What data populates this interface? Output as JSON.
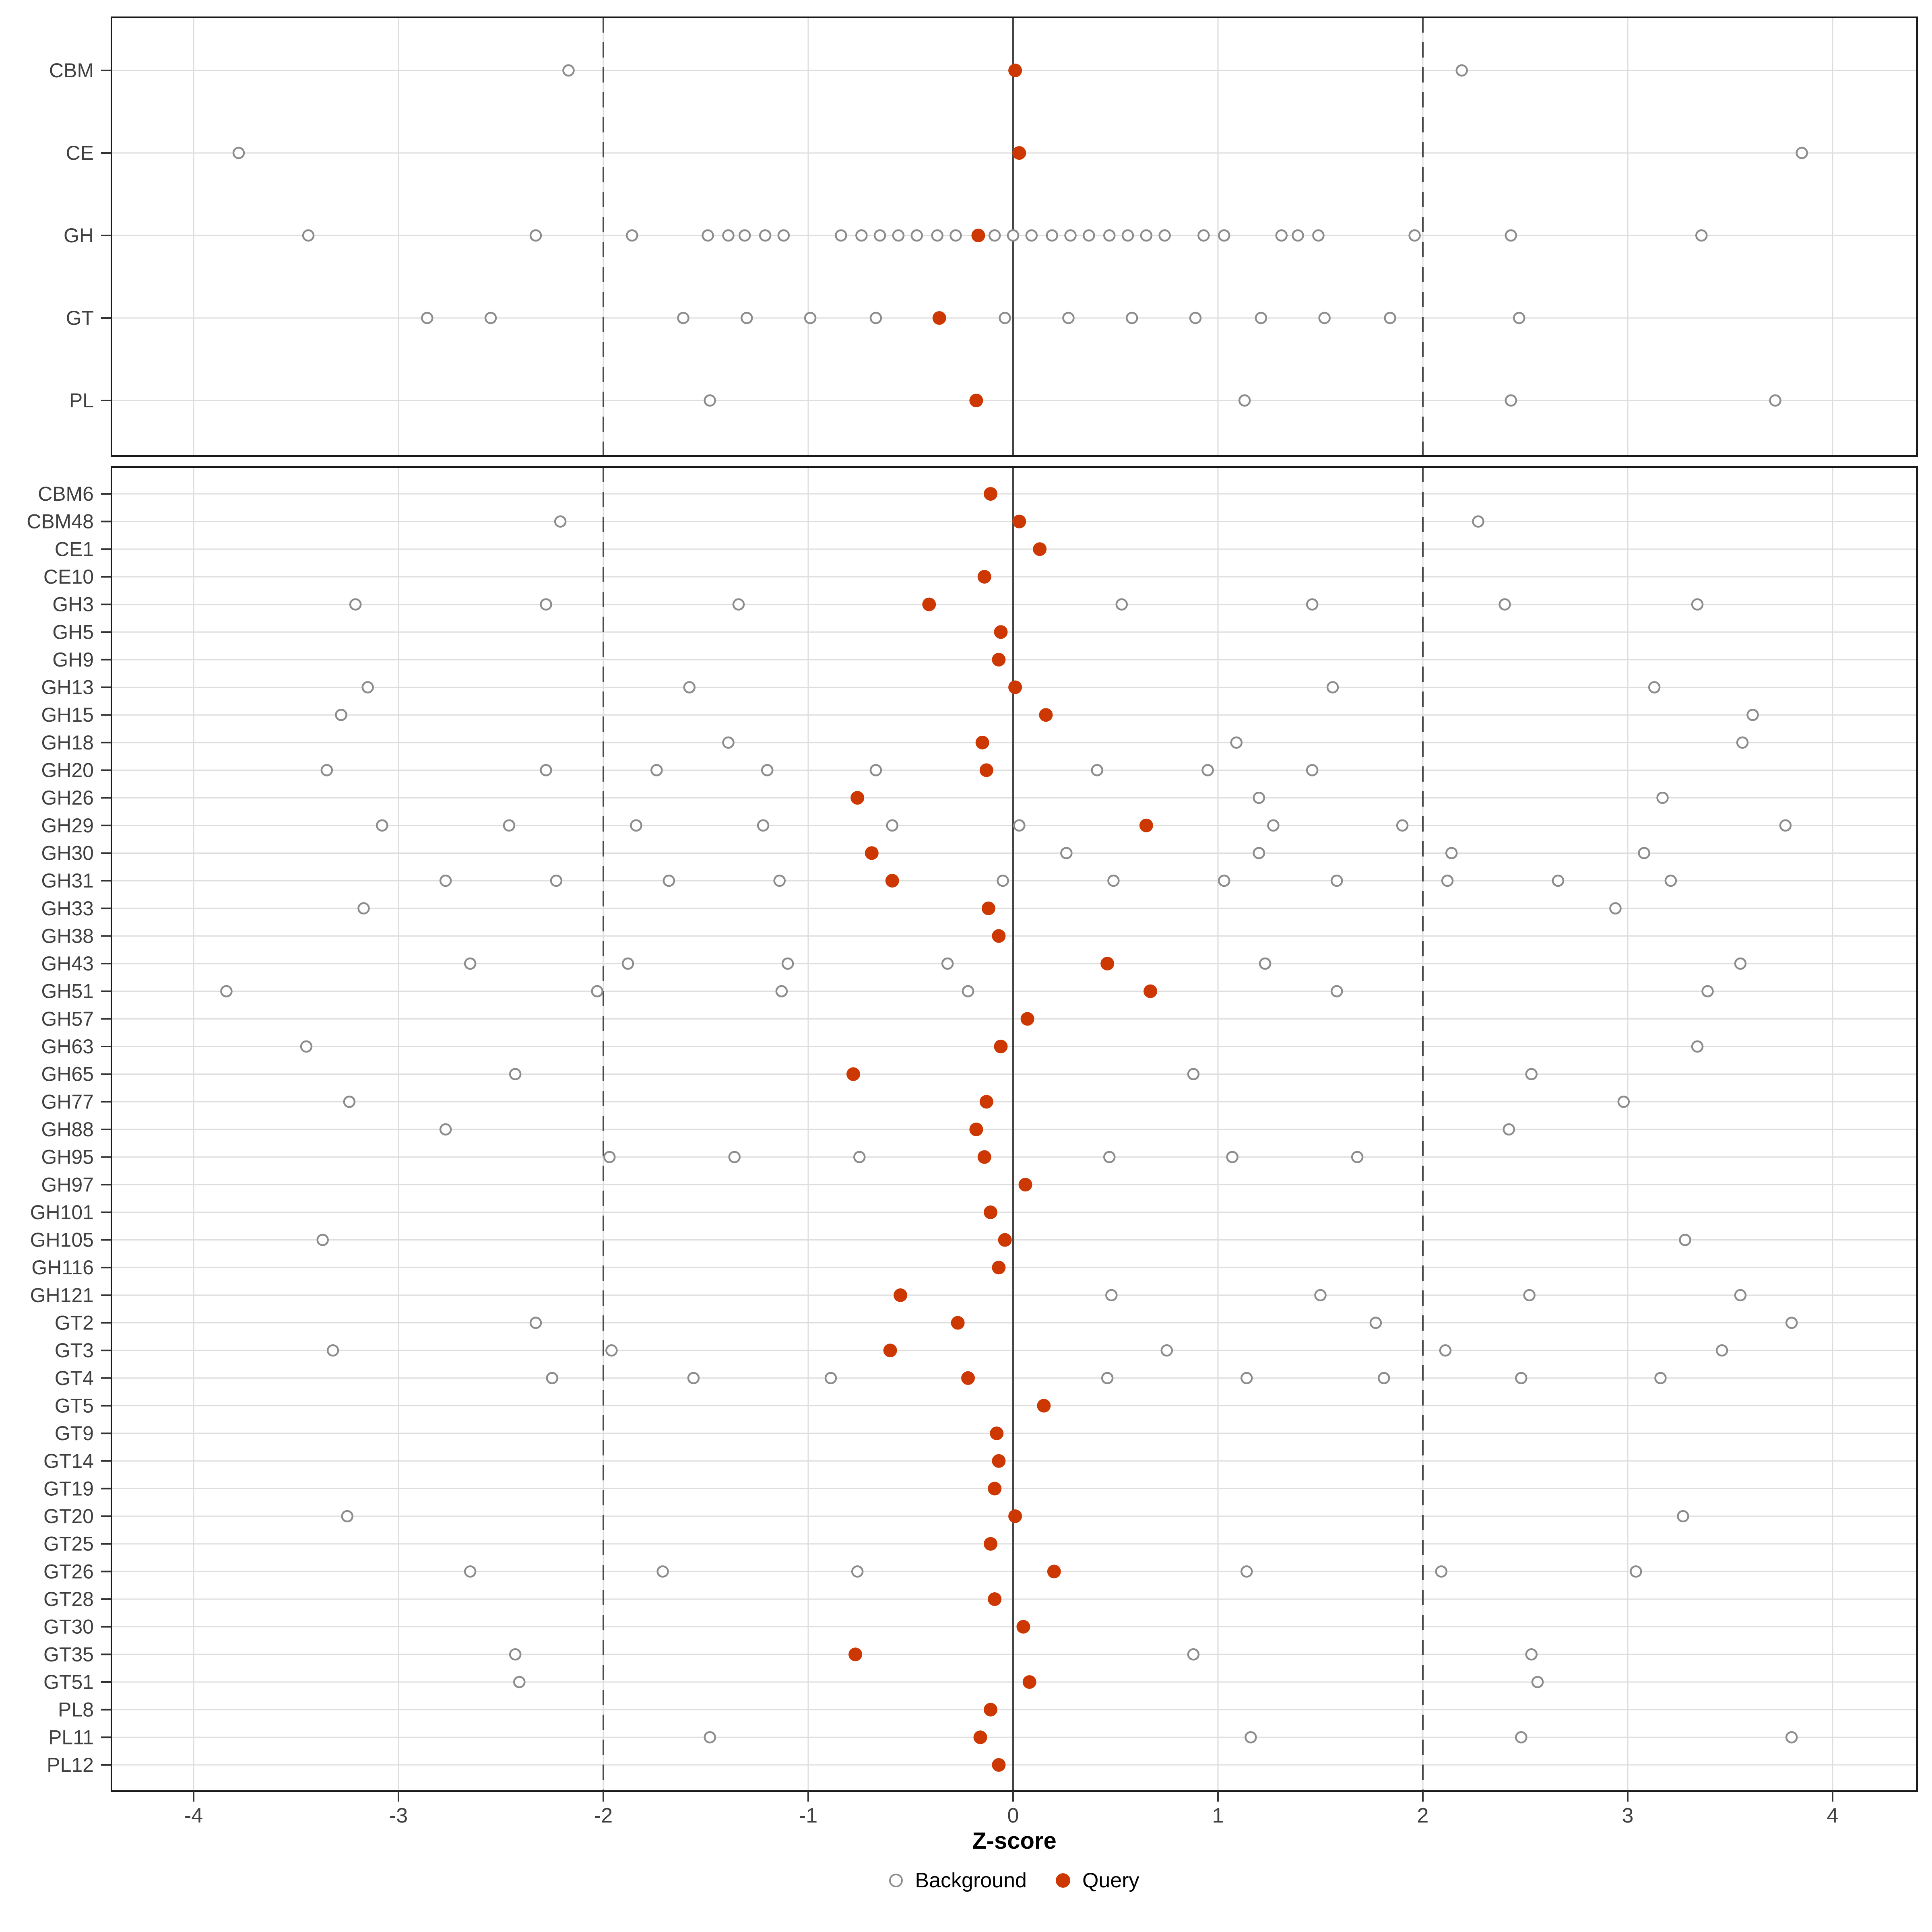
{
  "chart_data": {
    "type": "scatter",
    "title": "",
    "xlabel": "Z-score",
    "x_ticks": [
      -4,
      -3,
      -2,
      -1,
      0,
      1,
      2,
      3,
      4
    ],
    "x_range": [
      -4.4,
      4.41
    ],
    "grid": "on",
    "legend_position": "bottom",
    "reference_lines": {
      "solid": 0,
      "dashed": [
        -2,
        2
      ]
    },
    "legend": [
      {
        "label": "Background",
        "symbol": "open-circle"
      },
      {
        "label": "Query",
        "symbol": "filled-circle"
      }
    ],
    "colors": {
      "query": "#CD3702",
      "background_stroke": "#8C8C8C",
      "gridline": "#DEDEDE",
      "dashed_line": "#4A4A4A",
      "zero_line": "#454545",
      "axis_text": "#404040",
      "panel_border": "#1A1A1A",
      "tick_mark": "#333333"
    },
    "panels": [
      {
        "name": "enzyme-classes",
        "rows": [
          {
            "label": "CBM",
            "background": [
              -2.17,
              2.19
            ],
            "query": 0.01
          },
          {
            "label": "CE",
            "background": [
              -3.78,
              3.85
            ],
            "query": 0.03
          },
          {
            "label": "GH",
            "background": [
              -3.44,
              -2.33,
              -1.86,
              -1.49,
              -1.39,
              -1.31,
              -1.21,
              -1.12,
              -0.84,
              -0.74,
              -0.65,
              -0.56,
              -0.47,
              -0.37,
              -0.28,
              -0.09,
              0.0,
              0.09,
              0.19,
              0.28,
              0.37,
              0.47,
              0.56,
              0.65,
              0.74,
              0.93,
              1.03,
              1.31,
              1.39,
              1.49,
              1.96,
              2.43,
              3.36
            ],
            "query": -0.17
          },
          {
            "label": "GT",
            "background": [
              -2.86,
              -2.55,
              -1.61,
              -1.3,
              -0.99,
              -0.67,
              -0.04,
              0.27,
              0.58,
              0.89,
              1.21,
              1.52,
              1.84,
              2.47
            ],
            "query": -0.36
          },
          {
            "label": "PL",
            "background": [
              -1.48,
              1.13,
              2.43,
              3.72
            ],
            "query": -0.18
          }
        ]
      },
      {
        "name": "enzyme-families",
        "rows": [
          {
            "label": "CBM6",
            "background": [],
            "query": -0.11
          },
          {
            "label": "CBM48",
            "background": [
              -2.21,
              2.27
            ],
            "query": 0.03
          },
          {
            "label": "CE1",
            "background": [],
            "query": 0.13
          },
          {
            "label": "CE10",
            "background": [],
            "query": -0.14
          },
          {
            "label": "GH3",
            "background": [
              -3.21,
              -2.28,
              -1.34,
              0.53,
              1.46,
              2.4,
              3.34
            ],
            "query": -0.41
          },
          {
            "label": "GH5",
            "background": [],
            "query": -0.06
          },
          {
            "label": "GH9",
            "background": [],
            "query": -0.07
          },
          {
            "label": "GH13",
            "background": [
              -3.15,
              -1.58,
              1.56,
              3.13
            ],
            "query": 0.01
          },
          {
            "label": "GH15",
            "background": [
              -3.28,
              3.61
            ],
            "query": 0.16
          },
          {
            "label": "GH18",
            "background": [
              -1.39,
              1.09,
              3.56
            ],
            "query": -0.15
          },
          {
            "label": "GH20",
            "background": [
              -3.35,
              -2.28,
              -1.74,
              -1.2,
              -0.67,
              0.41,
              0.95,
              1.46
            ],
            "query": -0.13
          },
          {
            "label": "GH26",
            "background": [
              1.2,
              3.17
            ],
            "query": -0.76
          },
          {
            "label": "GH29",
            "background": [
              -3.08,
              -2.46,
              -1.84,
              -1.22,
              -0.59,
              0.03,
              1.27,
              1.9,
              3.77
            ],
            "query": 0.65
          },
          {
            "label": "GH30",
            "background": [
              0.26,
              1.2,
              2.14,
              3.08
            ],
            "query": -0.69
          },
          {
            "label": "GH31",
            "background": [
              -2.77,
              -2.23,
              -1.68,
              -1.14,
              -0.05,
              0.49,
              1.03,
              1.58,
              2.12,
              2.66,
              3.21
            ],
            "query": -0.59
          },
          {
            "label": "GH33",
            "background": [
              -3.17,
              2.94
            ],
            "query": -0.12
          },
          {
            "label": "GH38",
            "background": [],
            "query": -0.07
          },
          {
            "label": "GH43",
            "background": [
              -2.65,
              -1.88,
              -1.1,
              -0.32,
              1.23,
              3.55
            ],
            "query": 0.46
          },
          {
            "label": "GH51",
            "background": [
              -3.84,
              -2.03,
              -1.13,
              -0.22,
              1.58,
              3.39
            ],
            "query": 0.67
          },
          {
            "label": "GH57",
            "background": [],
            "query": 0.07
          },
          {
            "label": "GH63",
            "background": [
              -3.45,
              3.34
            ],
            "query": -0.06
          },
          {
            "label": "GH65",
            "background": [
              -2.43,
              0.88,
              2.53
            ],
            "query": -0.78
          },
          {
            "label": "GH77",
            "background": [
              -3.24,
              2.98
            ],
            "query": -0.13
          },
          {
            "label": "GH88",
            "background": [
              -2.77,
              2.42
            ],
            "query": -0.18
          },
          {
            "label": "GH95",
            "background": [
              -1.97,
              -1.36,
              -0.75,
              0.47,
              1.07,
              1.68
            ],
            "query": -0.14
          },
          {
            "label": "GH97",
            "background": [],
            "query": 0.06
          },
          {
            "label": "GH101",
            "background": [],
            "query": -0.11
          },
          {
            "label": "GH105",
            "background": [
              -3.37,
              3.28
            ],
            "query": -0.04
          },
          {
            "label": "GH116",
            "background": [],
            "query": -0.07
          },
          {
            "label": "GH121",
            "background": [
              0.48,
              1.5,
              2.52,
              3.55
            ],
            "query": -0.55
          },
          {
            "label": "GT2",
            "background": [
              -2.33,
              1.77,
              3.8
            ],
            "query": -0.27
          },
          {
            "label": "GT3",
            "background": [
              -3.32,
              -1.96,
              0.75,
              2.11,
              3.46
            ],
            "query": -0.6
          },
          {
            "label": "GT4",
            "background": [
              -2.25,
              -1.56,
              -0.89,
              0.46,
              1.14,
              1.81,
              2.48,
              3.16
            ],
            "query": -0.22
          },
          {
            "label": "GT5",
            "background": [],
            "query": 0.15
          },
          {
            "label": "GT9",
            "background": [],
            "query": -0.08
          },
          {
            "label": "GT14",
            "background": [],
            "query": -0.07
          },
          {
            "label": "GT19",
            "background": [],
            "query": -0.09
          },
          {
            "label": "GT20",
            "background": [
              -3.25,
              3.27
            ],
            "query": 0.01
          },
          {
            "label": "GT25",
            "background": [],
            "query": -0.11
          },
          {
            "label": "GT26",
            "background": [
              -2.65,
              -1.71,
              -0.76,
              1.14,
              2.09,
              3.04
            ],
            "query": 0.2
          },
          {
            "label": "GT28",
            "background": [],
            "query": -0.09
          },
          {
            "label": "GT30",
            "background": [],
            "query": 0.05
          },
          {
            "label": "GT35",
            "background": [
              -2.43,
              0.88,
              2.53
            ],
            "query": -0.77
          },
          {
            "label": "GT51",
            "background": [
              -2.41,
              2.56
            ],
            "query": 0.08
          },
          {
            "label": "PL8",
            "background": [],
            "query": -0.11
          },
          {
            "label": "PL11",
            "background": [
              -1.48,
              1.16,
              2.48,
              3.8
            ],
            "query": -0.16
          },
          {
            "label": "PL12",
            "background": [],
            "query": -0.07
          }
        ]
      }
    ]
  }
}
